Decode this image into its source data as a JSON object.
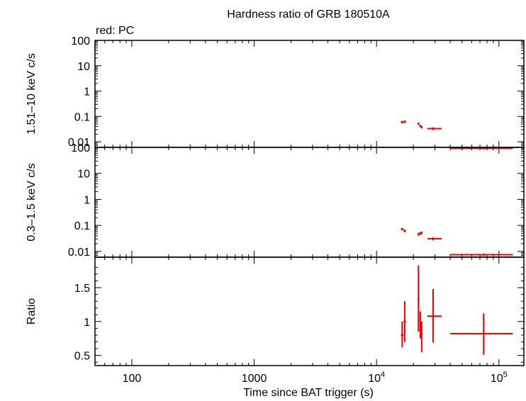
{
  "chart_data": {
    "type": "scatter",
    "title": "Hardness ratio of GRB 180510A",
    "legend": "red: PC",
    "xlabel": "Time since BAT trigger (s)",
    "xscale": "log",
    "xlim": [
      50,
      160000
    ],
    "x_ticks": [
      {
        "value": 100,
        "label": "100"
      },
      {
        "value": 1000,
        "label": "1000"
      },
      {
        "value": 10000,
        "base": "10",
        "exp": "4"
      },
      {
        "value": 100000,
        "base": "10",
        "exp": "5"
      }
    ],
    "series_color": "#ee0000",
    "panels": [
      {
        "name": "hard",
        "ylabel": "1.51–10 keV c/s",
        "yscale": "log",
        "ylim": [
          0.006,
          100
        ],
        "y_ticks": [
          {
            "value": 100,
            "label": "100"
          },
          {
            "value": 10,
            "label": "10"
          },
          {
            "value": 1,
            "label": "1"
          },
          {
            "value": 0.1,
            "label": "0.1"
          },
          {
            "value": 0.01,
            "label": "0.01"
          }
        ],
        "points": [
          {
            "x": 16200,
            "xlo": 15800,
            "xhi": 16600,
            "y": 0.06,
            "ylo": 0.053,
            "yhi": 0.067
          },
          {
            "x": 17000,
            "xlo": 16600,
            "xhi": 17400,
            "y": 0.062,
            "ylo": 0.055,
            "yhi": 0.069
          },
          {
            "x": 22000,
            "xlo": 21600,
            "xhi": 22400,
            "y": 0.052,
            "ylo": 0.046,
            "yhi": 0.058
          },
          {
            "x": 22800,
            "xlo": 22400,
            "xhi": 23200,
            "y": 0.042,
            "ylo": 0.037,
            "yhi": 0.047
          },
          {
            "x": 23400,
            "xlo": 23100,
            "xhi": 23700,
            "y": 0.038,
            "ylo": 0.034,
            "yhi": 0.042
          },
          {
            "x": 29000,
            "xlo": 26000,
            "xhi": 34000,
            "y": 0.033,
            "ylo": 0.029,
            "yhi": 0.037
          },
          {
            "x": 75000,
            "xlo": 40000,
            "xhi": 130000,
            "y": 0.0055,
            "ylo": 0.005,
            "yhi": 0.0062
          }
        ]
      },
      {
        "name": "soft",
        "ylabel": "0.3–1.5 keV c/s",
        "yscale": "log",
        "ylim": [
          0.006,
          100
        ],
        "y_ticks": [
          {
            "value": 100,
            "label": "100"
          },
          {
            "value": 10,
            "label": "10"
          },
          {
            "value": 1,
            "label": "1"
          },
          {
            "value": 0.1,
            "label": "0.1"
          },
          {
            "value": 0.01,
            "label": "0.01"
          }
        ],
        "points": [
          {
            "x": 16200,
            "xlo": 15800,
            "xhi": 16600,
            "y": 0.072,
            "ylo": 0.064,
            "yhi": 0.08
          },
          {
            "x": 17000,
            "xlo": 16600,
            "xhi": 17400,
            "y": 0.062,
            "ylo": 0.055,
            "yhi": 0.069
          },
          {
            "x": 22000,
            "xlo": 21600,
            "xhi": 22400,
            "y": 0.046,
            "ylo": 0.04,
            "yhi": 0.052
          },
          {
            "x": 22800,
            "xlo": 22400,
            "xhi": 23200,
            "y": 0.05,
            "ylo": 0.044,
            "yhi": 0.056
          },
          {
            "x": 23400,
            "xlo": 23100,
            "xhi": 23700,
            "y": 0.052,
            "ylo": 0.046,
            "yhi": 0.058
          },
          {
            "x": 29000,
            "xlo": 26000,
            "xhi": 34000,
            "y": 0.031,
            "ylo": 0.027,
            "yhi": 0.035
          },
          {
            "x": 75000,
            "xlo": 40000,
            "xhi": 130000,
            "y": 0.0075,
            "ylo": 0.0068,
            "yhi": 0.0083
          }
        ]
      },
      {
        "name": "ratio",
        "ylabel": "Ratio",
        "yscale": "linear",
        "ylim": [
          0.35,
          1.95
        ],
        "y_ticks": [
          {
            "value": 1.5,
            "label": "1.5"
          },
          {
            "value": 1,
            "label": "1"
          },
          {
            "value": 0.5,
            "label": "0.5"
          }
        ],
        "points": [
          {
            "x": 16200,
            "xlo": 15800,
            "xhi": 16600,
            "y": 0.8,
            "ylo": 0.62,
            "yhi": 1.0
          },
          {
            "x": 17000,
            "xlo": 16600,
            "xhi": 17400,
            "y": 1.0,
            "ylo": 0.7,
            "yhi": 1.3
          },
          {
            "x": 22000,
            "xlo": 21600,
            "xhi": 22400,
            "y": 1.33,
            "ylo": 0.85,
            "yhi": 1.83
          },
          {
            "x": 22800,
            "xlo": 22400,
            "xhi": 23200,
            "y": 0.95,
            "ylo": 0.75,
            "yhi": 1.15
          },
          {
            "x": 23400,
            "xlo": 23100,
            "xhi": 23700,
            "y": 0.78,
            "ylo": 0.55,
            "yhi": 1.0
          },
          {
            "x": 29000,
            "xlo": 26000,
            "xhi": 34000,
            "y": 1.08,
            "ylo": 0.69,
            "yhi": 1.48
          },
          {
            "x": 75000,
            "xlo": 40000,
            "xhi": 130000,
            "y": 0.82,
            "ylo": 0.51,
            "yhi": 1.12
          }
        ]
      }
    ]
  }
}
